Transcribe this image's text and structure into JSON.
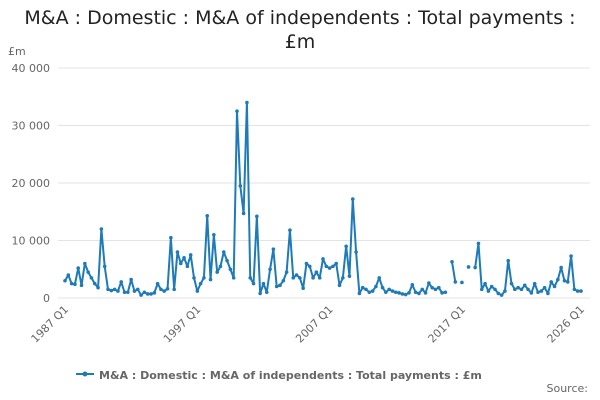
{
  "chart_data": {
    "type": "line",
    "title": "M&A : Domestic : M&A of independents : Total payments : £m",
    "y_label": "£m",
    "source": "Source:",
    "categories": [
      "1987 Q1",
      null,
      null,
      null,
      null,
      null,
      null,
      null,
      null,
      null,
      null,
      null,
      null,
      null,
      null,
      null,
      null,
      null,
      null,
      null,
      null,
      null,
      null,
      null,
      null,
      null,
      null,
      null,
      null,
      null,
      null,
      null,
      null,
      null,
      null,
      null,
      null,
      null,
      null,
      null,
      "1997 Q1",
      null,
      null,
      null,
      null,
      null,
      null,
      null,
      null,
      null,
      null,
      null,
      null,
      null,
      null,
      null,
      null,
      null,
      null,
      null,
      null,
      null,
      null,
      null,
      null,
      null,
      null,
      null,
      null,
      null,
      null,
      null,
      null,
      null,
      null,
      null,
      null,
      null,
      null,
      null,
      "2007 Q1",
      null,
      null,
      null,
      null,
      null,
      null,
      null,
      null,
      null,
      null,
      null,
      null,
      null,
      null,
      null,
      null,
      null,
      null,
      null,
      null,
      null,
      null,
      null,
      null,
      null,
      null,
      null,
      null,
      null,
      null,
      null,
      null,
      null,
      null,
      null,
      null,
      null,
      null,
      null,
      "2017 Q1",
      null,
      null,
      null,
      null,
      null,
      null,
      null,
      null,
      null,
      null,
      null,
      null,
      null,
      null,
      null,
      null,
      null,
      null,
      null,
      null,
      null,
      null,
      null,
      null,
      null,
      null,
      null,
      null,
      null,
      null,
      null,
      null,
      null,
      null,
      null,
      "2026 Q1"
    ],
    "series": [
      {
        "name": "M&A : Domestic : M&A of independents : Total payments : £m",
        "color": "#1e7ab8",
        "values": [
          3000,
          4000,
          2500,
          2400,
          5200,
          2200,
          6000,
          4500,
          3500,
          2500,
          1800,
          12000,
          5500,
          1500,
          1300,
          1500,
          1200,
          2800,
          1000,
          1000,
          3200,
          1200,
          1500,
          500,
          1000,
          700,
          700,
          900,
          2500,
          1500,
          1200,
          1600,
          10500,
          1500,
          8000,
          6000,
          7000,
          5500,
          7500,
          3500,
          1200,
          2500,
          3500,
          14300,
          3200,
          11000,
          4500,
          5500,
          8000,
          6500,
          5000,
          3500,
          32500,
          19500,
          14700,
          34000,
          3500,
          2500,
          14200,
          800,
          2500,
          1000,
          5000,
          8500,
          2000,
          2200,
          3000,
          4500,
          11800,
          3500,
          4000,
          3500,
          1700,
          6000,
          5500,
          3500,
          4500,
          3500,
          6800,
          5500,
          5200,
          5500,
          6000,
          2200,
          3500,
          9000,
          3800,
          17200,
          8000,
          800,
          1800,
          1500,
          1000,
          1200,
          2000,
          3500,
          1800,
          1000,
          1500,
          1200,
          1000,
          900,
          700,
          600,
          900,
          2300,
          1000,
          800,
          1500,
          900,
          2600,
          1800,
          1500,
          1800,
          900,
          1000,
          null,
          6300,
          2800,
          null,
          2700,
          null,
          5400,
          null,
          5300,
          9500,
          1500,
          2500,
          1200,
          2000,
          1500,
          800,
          500,
          1200,
          6500,
          2500,
          1500,
          1800,
          1500,
          2200,
          1500,
          900,
          2500,
          1000,
          1200,
          1800,
          800,
          2800,
          2000,
          3200,
          5300,
          3000,
          2800,
          7300,
          1500,
          1200,
          1200
        ]
      }
    ],
    "ylim": [
      0,
      40000
    ],
    "yticks": [
      0,
      {
        "value": 10000,
        "label": "10 000"
      },
      {
        "value": 20000,
        "label": "20 000"
      },
      {
        "value": 30000,
        "label": "30 000"
      },
      {
        "value": 40000,
        "label": "40 000"
      }
    ],
    "grid": true,
    "legend": "bottom"
  }
}
